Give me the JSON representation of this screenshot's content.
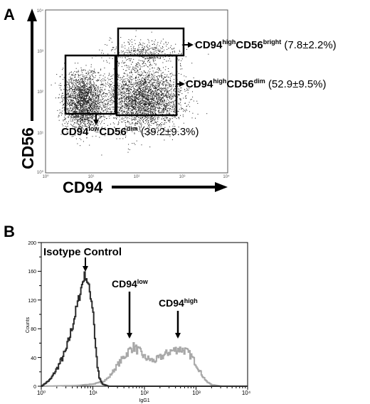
{
  "panels": {
    "a": {
      "label": "A",
      "x_axis_label": "CD94",
      "y_axis_label": "CD56",
      "x_ticks": [
        "10⁰",
        "10¹",
        "10²",
        "10³",
        "10⁴"
      ],
      "y_ticks": [
        "10⁰",
        "10¹",
        "10²",
        "10³",
        "10⁴"
      ],
      "gates": [
        {
          "main": "CD94",
          "sup1": "high",
          "mid": "CD56",
          "sup2": "bright",
          "value": " (7.8±2.2%)"
        },
        {
          "main": "CD94",
          "sup1": "high",
          "mid": "CD56",
          "sup2": "dim",
          "value": " (52.9±9.5%)"
        },
        {
          "main": "CD94",
          "sup1": "low",
          "mid": "CD56",
          "sup2": "dim",
          "value": " (39.2±9.3%)"
        }
      ]
    },
    "b": {
      "label": "B",
      "x_axis_label": "IgG1",
      "y_axis_label": "Counts",
      "x_ticks": [
        "10⁰",
        "10¹",
        "10²",
        "10³",
        "10⁴"
      ],
      "y_ticks": [
        "0",
        "40",
        "80",
        "120",
        "160",
        "200"
      ],
      "annotations": {
        "isotype": "Isotype Control",
        "low_main": "CD94",
        "low_sup": "low",
        "high_main": "CD94",
        "high_sup": "high"
      }
    }
  },
  "chart_data": [
    {
      "type": "scatter",
      "title": "",
      "xlabel": "CD94",
      "ylabel": "CD56",
      "x_scale": "log",
      "y_scale": "log",
      "xlim": [
        1,
        10000
      ],
      "ylim": [
        1,
        10000
      ],
      "colors": {
        "points": "#1a1a1a",
        "gates": "#000000"
      },
      "gates": [
        {
          "name": "CD94highCD56bright",
          "percent": 7.8,
          "sd": 2.2,
          "x_range": [
            20,
            1300
          ],
          "y_range": [
            400,
            2000
          ]
        },
        {
          "name": "CD94highCD56dim",
          "percent": 52.9,
          "sd": 9.5,
          "x_range": [
            20,
            1000
          ],
          "y_range": [
            11,
            400
          ]
        },
        {
          "name": "CD94lowCD56dim",
          "percent": 39.2,
          "sd": 9.3,
          "x_range": [
            2.3,
            20
          ],
          "y_range": [
            11,
            300
          ]
        }
      ]
    },
    {
      "type": "line",
      "title": "",
      "xlabel": "IgG1",
      "ylabel": "Counts",
      "x_scale": "log",
      "xlim": [
        1,
        10000
      ],
      "ylim": [
        0,
        200
      ],
      "series": [
        {
          "color": "#2b2b2b",
          "x": [
            1,
            1.5,
            2,
            3,
            4,
            5,
            6,
            6.5,
            7,
            7.5,
            8,
            9,
            10,
            11,
            12,
            13,
            15,
            20,
            30,
            100,
            10000
          ],
          "y": [
            0,
            10,
            25,
            50,
            85,
            115,
            140,
            150,
            155,
            150,
            140,
            125,
            105,
            60,
            30,
            12,
            3,
            0,
            0,
            0,
            0
          ]
        },
        {
          "color": "#a8a8a8",
          "x": [
            1,
            5,
            10,
            15,
            20,
            30,
            50,
            60,
            80,
            100,
            150,
            200,
            300,
            450,
            600,
            800,
            1000,
            1300,
            1600,
            2000,
            3000,
            10000
          ],
          "y": [
            0,
            1,
            3,
            6,
            12,
            30,
            50,
            55,
            48,
            40,
            35,
            40,
            48,
            52,
            50,
            42,
            30,
            15,
            6,
            2,
            0,
            0
          ]
        }
      ]
    }
  ]
}
